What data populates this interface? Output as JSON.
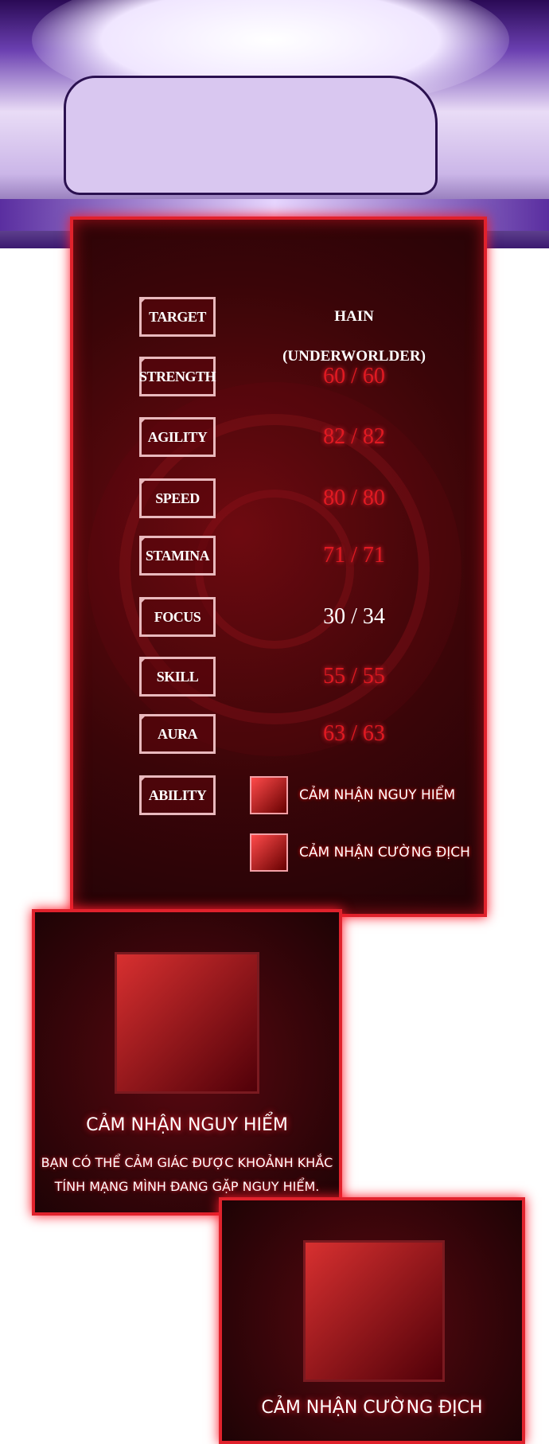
{
  "stats": [
    {
      "label": "TARGET",
      "value": "HAIN (UNDERWORLDER)"
    },
    {
      "label": "STRENGTH",
      "value": "60 / 60"
    },
    {
      "label": "AGILITY",
      "value": "82 / 82"
    },
    {
      "label": "SPEED",
      "value": "80 / 80"
    },
    {
      "label": "STAMINA",
      "value": "71 / 71"
    },
    {
      "label": "FOCUS",
      "value": "30 / 34"
    },
    {
      "label": "SKILL",
      "value": "55 / 55"
    },
    {
      "label": "AURA",
      "value": "63 / 63"
    }
  ],
  "ability": {
    "label": "ABILITY",
    "items": [
      "CẢM NHẬN NGUY HIỂM",
      "CẢM NHẬN CƯỜNG ĐỊCH"
    ]
  },
  "card1": {
    "title": "CẢM NHẬN NGUY HIỂM",
    "desc1": "BẠN CÓ THỂ CẢM GIÁC ĐƯỢC KHOẢNH KHẮC",
    "desc2": "TÍNH MẠNG MÌNH ĐANG GẶP NGUY HIỂM."
  },
  "card2": {
    "title": "CẢM NHẬN CƯỜNG ĐỊCH"
  },
  "colors": {
    "accent": "#e0222c",
    "value_red": "#e01a22"
  }
}
